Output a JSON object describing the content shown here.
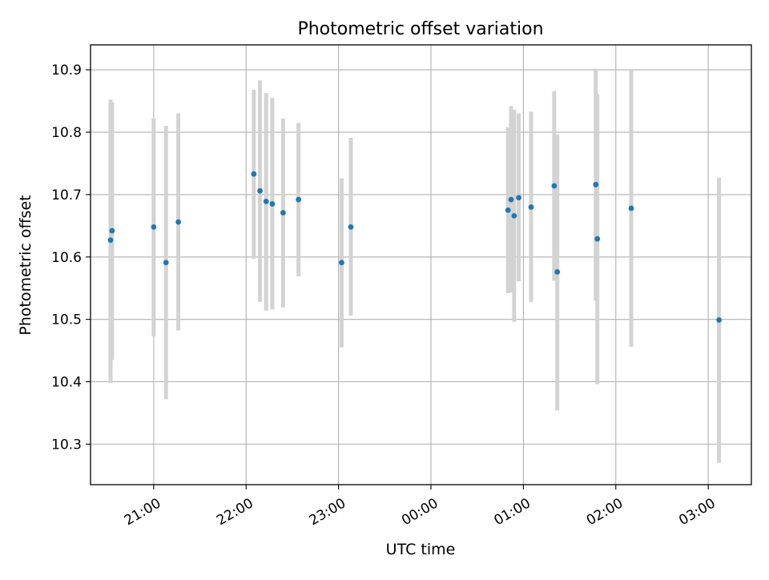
{
  "chart_data": {
    "type": "scatter",
    "title": "Photometric offset variation",
    "xlabel": "UTC time",
    "ylabel": "Photometric offset",
    "grid": true,
    "legend": "none",
    "x_axis_type": "time",
    "xlim": [
      "20:19",
      "03:28"
    ],
    "ylim": [
      10.235,
      10.94
    ],
    "x_ticks": [
      {
        "value": "21:00",
        "label": "21:00"
      },
      {
        "value": "22:00",
        "label": "22:00"
      },
      {
        "value": "23:00",
        "label": "23:00"
      },
      {
        "value": "00:00",
        "label": "00:00"
      },
      {
        "value": "01:00",
        "label": "01:00"
      },
      {
        "value": "02:00",
        "label": "02:00"
      },
      {
        "value": "03:00",
        "label": "03:00"
      }
    ],
    "y_ticks": [
      {
        "value": 10.3,
        "label": "10.3"
      },
      {
        "value": 10.4,
        "label": "10.4"
      },
      {
        "value": 10.5,
        "label": "10.5"
      },
      {
        "value": 10.6,
        "label": "10.6"
      },
      {
        "value": 10.7,
        "label": "10.7"
      },
      {
        "value": 10.8,
        "label": "10.8"
      },
      {
        "value": 10.9,
        "label": "10.9"
      }
    ],
    "colors": {
      "points": "#1f77b4",
      "errorbars": "#d3d3d3",
      "grid": "#b0b0b0"
    },
    "series": [
      {
        "points": [
          {
            "time": "20:32",
            "y": 10.627,
            "err_low": 10.398,
            "err_high": 10.852
          },
          {
            "time": "20:33",
            "y": 10.642,
            "err_low": 10.435,
            "err_high": 10.848
          },
          {
            "time": "21:00",
            "y": 10.648,
            "err_low": 10.473,
            "err_high": 10.822
          },
          {
            "time": "21:08",
            "y": 10.591,
            "err_low": 10.372,
            "err_high": 10.81
          },
          {
            "time": "21:16",
            "y": 10.656,
            "err_low": 10.482,
            "err_high": 10.83
          },
          {
            "time": "22:05",
            "y": 10.733,
            "err_low": 10.597,
            "err_high": 10.868
          },
          {
            "time": "22:09",
            "y": 10.706,
            "err_low": 10.528,
            "err_high": 10.883
          },
          {
            "time": "22:13",
            "y": 10.689,
            "err_low": 10.514,
            "err_high": 10.863
          },
          {
            "time": "22:17",
            "y": 10.685,
            "err_low": 10.516,
            "err_high": 10.855
          },
          {
            "time": "22:24",
            "y": 10.671,
            "err_low": 10.519,
            "err_high": 10.822
          },
          {
            "time": "22:34",
            "y": 10.692,
            "err_low": 10.569,
            "err_high": 10.815
          },
          {
            "time": "23:02",
            "y": 10.591,
            "err_low": 10.455,
            "err_high": 10.726
          },
          {
            "time": "23:08",
            "y": 10.648,
            "err_low": 10.506,
            "err_high": 10.791
          },
          {
            "time": "00:50",
            "y": 10.675,
            "err_low": 10.542,
            "err_high": 10.808
          },
          {
            "time": "00:52",
            "y": 10.692,
            "err_low": 10.543,
            "err_high": 10.842
          },
          {
            "time": "00:54",
            "y": 10.666,
            "err_low": 10.496,
            "err_high": 10.836
          },
          {
            "time": "00:57",
            "y": 10.695,
            "err_low": 10.561,
            "err_high": 10.83
          },
          {
            "time": "01:05",
            "y": 10.68,
            "err_low": 10.528,
            "err_high": 10.833
          },
          {
            "time": "01:20",
            "y": 10.714,
            "err_low": 10.562,
            "err_high": 10.866
          },
          {
            "time": "01:22",
            "y": 10.576,
            "err_low": 10.354,
            "err_high": 10.796
          },
          {
            "time": "01:47",
            "y": 10.716,
            "err_low": 10.53,
            "err_high": 10.902
          },
          {
            "time": "01:48",
            "y": 10.629,
            "err_low": 10.396,
            "err_high": 10.861
          },
          {
            "time": "02:10",
            "y": 10.678,
            "err_low": 10.456,
            "err_high": 10.899
          },
          {
            "time": "03:07",
            "y": 10.499,
            "err_low": 10.27,
            "err_high": 10.727
          }
        ]
      }
    ]
  }
}
